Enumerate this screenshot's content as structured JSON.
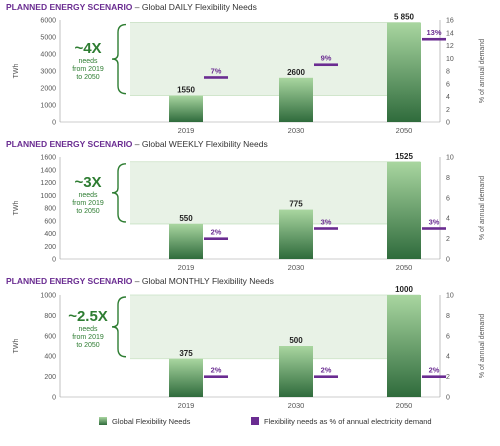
{
  "colors": {
    "bar_light": "#a9d6a0",
    "bar_dark": "#2f6b3c",
    "marker": "#6a2c91",
    "title_purple": "#6a2c91",
    "accent_green": "#2e7d32",
    "band": "#e8f2e6",
    "axis_text": "#555555"
  },
  "chart_data": [
    {
      "type": "bar",
      "title": "PLANNED ENERGY SCENARIO",
      "subtitle": "– Global DAILY Flexibility Needs",
      "ylabel": "TWh",
      "y2label": "% of annual demand",
      "categories": [
        "2019",
        "2030",
        "2050"
      ],
      "ylim": [
        0,
        6000
      ],
      "yticks": [
        "0",
        "1000",
        "2000",
        "3000",
        "4000",
        "5000",
        "6000"
      ],
      "y2lim": [
        0,
        16
      ],
      "y2ticks": [
        "0",
        "2",
        "4",
        "6",
        "8",
        "10",
        "12",
        "14",
        "16"
      ],
      "series": [
        {
          "name": "Global Flexibility Needs",
          "values": [
            1550,
            2600,
            5850
          ],
          "labels": [
            "1550",
            "2600",
            "5 850"
          ]
        },
        {
          "name": "Flexibility needs as % of annual electricity demand",
          "values": [
            7,
            9,
            13
          ],
          "labels": [
            "7%",
            "9%",
            "13%"
          ]
        }
      ],
      "annotation": {
        "multiplier": "~4X",
        "text": "needs from 2019 to 2050"
      }
    },
    {
      "type": "bar",
      "title": "PLANNED ENERGY SCENARIO",
      "subtitle": "– Global WEEKLY Flexibility Needs",
      "ylabel": "TWh",
      "y2label": "% of annual demand",
      "categories": [
        "2019",
        "2030",
        "2050"
      ],
      "ylim": [
        0,
        1600
      ],
      "yticks": [
        "0",
        "200",
        "400",
        "600",
        "800",
        "1000",
        "1200",
        "1400",
        "1600"
      ],
      "y2lim": [
        0,
        10
      ],
      "y2ticks": [
        "0",
        "2",
        "4",
        "6",
        "8",
        "10"
      ],
      "series": [
        {
          "name": "Global Flexibility Needs",
          "values": [
            550,
            775,
            1525
          ],
          "labels": [
            "550",
            "775",
            "1525"
          ]
        },
        {
          "name": "Flexibility needs as % of annual electricity demand",
          "values": [
            2,
            3,
            3
          ],
          "labels": [
            "2%",
            "3%",
            "3%"
          ]
        }
      ],
      "annotation": {
        "multiplier": "~3X",
        "text": "needs from 2019 to 2050"
      }
    },
    {
      "type": "bar",
      "title": "PLANNED ENERGY SCENARIO",
      "subtitle": "– Global MONTHLY Flexibility Needs",
      "ylabel": "TWh",
      "y2label": "% of annual demand",
      "categories": [
        "2019",
        "2030",
        "2050"
      ],
      "ylim": [
        0,
        1000
      ],
      "yticks": [
        "0",
        "200",
        "400",
        "600",
        "800",
        "1000"
      ],
      "y2lim": [
        0,
        10
      ],
      "y2ticks": [
        "0",
        "2",
        "4",
        "6",
        "8",
        "10"
      ],
      "series": [
        {
          "name": "Global Flexibility Needs",
          "values": [
            375,
            500,
            1000
          ],
          "labels": [
            "375",
            "500",
            "1000"
          ]
        },
        {
          "name": "Flexibility needs as % of annual electricity demand",
          "values": [
            2,
            2,
            2
          ],
          "labels": [
            "2%",
            "2%",
            "2%"
          ]
        }
      ],
      "annotation": {
        "multiplier": "~2.5X",
        "text": "needs from 2019 to 2050"
      }
    }
  ],
  "legend": {
    "items": [
      {
        "label": "Global Flexibility Needs",
        "icon": "green-gradient-square"
      },
      {
        "label": "Flexibility needs as % of annual electricity demand",
        "icon": "purple-square"
      }
    ]
  }
}
